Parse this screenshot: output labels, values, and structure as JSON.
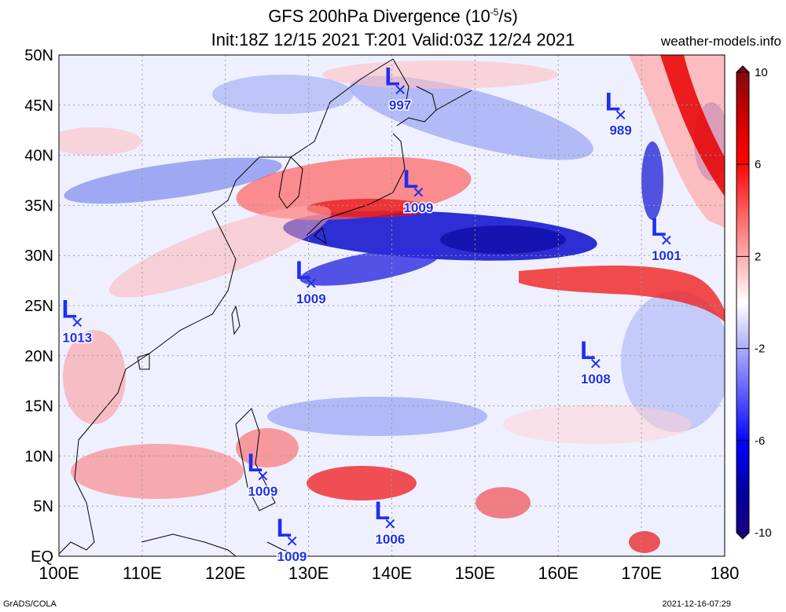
{
  "header": {
    "title_main": "GFS 200hPa Divergence (10",
    "title_exp": "-5",
    "title_tail": "/s)",
    "subtitle": "Init:18Z 12/15 2021 T:201 Valid:03Z 12/24 2021",
    "site": "weather-models.info"
  },
  "footer": {
    "left": "GrADS/COLA",
    "right": "2021-12-16-07:29"
  },
  "axes": {
    "lat_labels": [
      "EQ",
      "5N",
      "10N",
      "15N",
      "20N",
      "25N",
      "30N",
      "35N",
      "40N",
      "45N",
      "50N"
    ],
    "lon_labels": [
      "100E",
      "110E",
      "120E",
      "130E",
      "140E",
      "150E",
      "160E",
      "170E",
      "180"
    ]
  },
  "colorbar": {
    "labels": [
      "10",
      "6",
      "2",
      "-2",
      "-6",
      "-10"
    ],
    "values": [
      10,
      6,
      2,
      -2,
      -6,
      -10
    ],
    "colors": [
      "#7a0a12",
      "#ff0000",
      "#ffffff",
      "#0000ff",
      "#1a0080"
    ]
  },
  "lows": [
    {
      "label": "L",
      "pressure": "997",
      "lon": 141,
      "lat": 46.5
    },
    {
      "label": "L",
      "pressure": "989",
      "lon": 167.5,
      "lat": 44
    },
    {
      "label": "L",
      "pressure": "1009",
      "lon": 143.2,
      "lat": 36.3
    },
    {
      "label": "L",
      "pressure": "1001",
      "lon": 173,
      "lat": 31.5
    },
    {
      "label": "L",
      "pressure": "1009",
      "lon": 130.3,
      "lat": 27.2
    },
    {
      "label": "L",
      "pressure": "1013",
      "lon": 102.2,
      "lat": 23.3
    },
    {
      "label": "L",
      "pressure": "1008",
      "lon": 164.5,
      "lat": 19.2
    },
    {
      "label": "L",
      "pressure": "1009",
      "lon": 124.5,
      "lat": 8
    },
    {
      "label": "L",
      "pressure": "1006",
      "lon": 139.8,
      "lat": 3.2
    },
    {
      "label": "L",
      "pressure": "1009",
      "lon": 128,
      "lat": 1.5
    }
  ]
}
